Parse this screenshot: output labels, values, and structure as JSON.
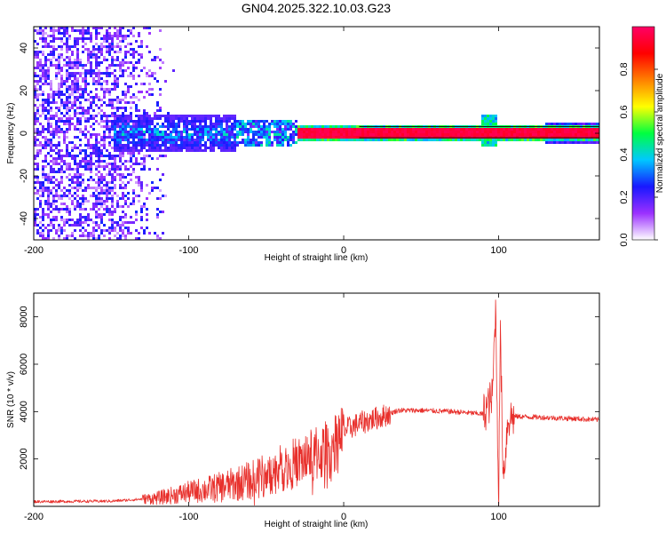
{
  "title": "GN04.2025.322.10.03.G23",
  "chart_data": [
    {
      "type": "heatmap",
      "xlabel": "Height of straight line (km)",
      "ylabel": "Frequency (Hz)",
      "xlim": [
        -200,
        165
      ],
      "ylim": [
        -50,
        50
      ],
      "xticks": [
        "-200",
        "-100",
        "0",
        "100"
      ],
      "xtick_values": [
        -200,
        -100,
        0,
        100
      ],
      "yticks": [
        "-40",
        "-20",
        "0",
        "20",
        "40"
      ],
      "ytick_values": [
        -40,
        -20,
        0,
        20,
        40
      ],
      "colorbar": {
        "label": "Normalized spectral amplitude",
        "range": [
          0,
          1
        ],
        "ticks": [
          "0.0",
          "0.2",
          "0.4",
          "0.6",
          "0.8"
        ],
        "tick_values": [
          0.0,
          0.2,
          0.4,
          0.6,
          0.8
        ],
        "colors": [
          "#ffffff",
          "#9b30ff",
          "#1818ff",
          "#00c8ff",
          "#00ff40",
          "#ffff00",
          "#ff8000",
          "#ff0000",
          "#ff0066"
        ]
      },
      "features": {
        "noise_region_x": [
          -200,
          -110
        ],
        "broadband_cluster_x": [
          -150,
          -70
        ],
        "narrow_band_x": [
          -30,
          165
        ],
        "band_center_freq": 0.5,
        "peak_amplitude": 1.0
      }
    },
    {
      "type": "line",
      "xlabel": "Height of straight line (km)",
      "ylabel": "SNR (10 * v/v)",
      "xlim": [
        -200,
        165
      ],
      "ylim": [
        0,
        9000
      ],
      "xticks": [
        "-200",
        "-100",
        "0",
        "100"
      ],
      "xtick_values": [
        -200,
        -100,
        0,
        100
      ],
      "yticks": [
        "2000",
        "4000",
        "6000",
        "8000"
      ],
      "ytick_values": [
        2000,
        4000,
        6000,
        8000
      ],
      "line_color": "#e8302c",
      "series": [
        {
          "x": [
            -200,
            -150,
            -120,
            -100,
            -80,
            -60,
            -40,
            -25,
            -10,
            0,
            10,
            25,
            35,
            50,
            70,
            90,
            96,
            98,
            100,
            101,
            103,
            106,
            110,
            130,
            150,
            165
          ],
          "values": [
            200,
            220,
            350,
            600,
            800,
            1100,
            1600,
            2000,
            2400,
            3200,
            3500,
            3800,
            4050,
            4050,
            4000,
            3900,
            4600,
            8500,
            300,
            7500,
            1200,
            3700,
            3800,
            3750,
            3700,
            3650
          ]
        }
      ]
    }
  ]
}
